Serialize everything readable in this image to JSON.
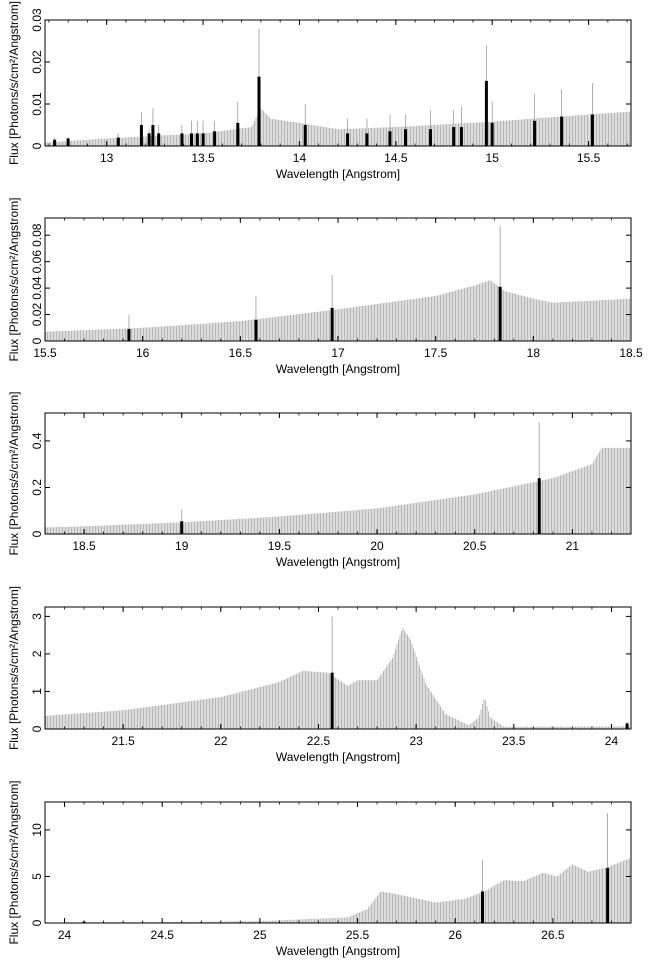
{
  "figure": {
    "background": "#ffffff",
    "data_color": "#000000",
    "model_color": "#9a9a9a"
  },
  "chart_data": [
    {
      "type": "bar",
      "xlabel": "Wavelength [Angstrom]",
      "ylabel": "Flux [Photons/s/cm²/Angstrom]",
      "xlim": [
        12.68,
        15.72
      ],
      "ylim": [
        0,
        0.03
      ],
      "xticks": [
        13,
        13.5,
        14,
        14.5,
        15,
        15.5
      ],
      "xtick_labels": [
        "13",
        "13.5",
        "14",
        "14.5",
        "15",
        "15.5"
      ],
      "yticks": [
        0,
        0.01,
        0.02,
        0.03
      ],
      "ytick_labels": [
        "0",
        "0.01",
        "0.02",
        "0.03"
      ],
      "model_bins": 1.5,
      "continuum": [
        [
          12.68,
          0.0008
        ],
        [
          13.0,
          0.0018
        ],
        [
          13.5,
          0.003
        ],
        [
          13.75,
          0.0045
        ],
        [
          13.8,
          0.009
        ],
        [
          13.85,
          0.0065
        ],
        [
          14.0,
          0.0055
        ],
        [
          14.2,
          0.004
        ],
        [
          14.5,
          0.0045
        ],
        [
          15.0,
          0.0058
        ],
        [
          15.5,
          0.0075
        ],
        [
          15.72,
          0.0082
        ]
      ],
      "data_points": [
        {
          "x": 12.73,
          "y": 0.0015,
          "err": 0.002
        },
        {
          "x": 12.8,
          "y": 0.0018,
          "err": 0.002
        },
        {
          "x": 13.06,
          "y": 0.002,
          "err": 0.003
        },
        {
          "x": 13.18,
          "y": 0.005,
          "err": 0.008
        },
        {
          "x": 13.22,
          "y": 0.003,
          "err": 0.004
        },
        {
          "x": 13.24,
          "y": 0.005,
          "err": 0.009
        },
        {
          "x": 13.27,
          "y": 0.003,
          "err": 0.005
        },
        {
          "x": 13.39,
          "y": 0.003,
          "err": 0.005
        },
        {
          "x": 13.44,
          "y": 0.003,
          "err": 0.006
        },
        {
          "x": 13.47,
          "y": 0.003,
          "err": 0.006
        },
        {
          "x": 13.5,
          "y": 0.003,
          "err": 0.006
        },
        {
          "x": 13.56,
          "y": 0.0035,
          "err": 0.006
        },
        {
          "x": 13.68,
          "y": 0.0055,
          "err": 0.0105
        },
        {
          "x": 13.79,
          "y": 0.0165,
          "err": 0.028
        },
        {
          "x": 14.03,
          "y": 0.005,
          "err": 0.01
        },
        {
          "x": 14.25,
          "y": 0.003,
          "err": 0.0065
        },
        {
          "x": 14.35,
          "y": 0.003,
          "err": 0.0065
        },
        {
          "x": 14.47,
          "y": 0.0035,
          "err": 0.0075
        },
        {
          "x": 14.55,
          "y": 0.004,
          "err": 0.0075
        },
        {
          "x": 14.68,
          "y": 0.004,
          "err": 0.0085
        },
        {
          "x": 14.8,
          "y": 0.0045,
          "err": 0.0085
        },
        {
          "x": 14.84,
          "y": 0.0045,
          "err": 0.0095
        },
        {
          "x": 14.97,
          "y": 0.0155,
          "err": 0.024
        },
        {
          "x": 15.0,
          "y": 0.0055,
          "err": 0.0105
        },
        {
          "x": 15.22,
          "y": 0.006,
          "err": 0.0125
        },
        {
          "x": 15.36,
          "y": 0.007,
          "err": 0.0135
        },
        {
          "x": 15.52,
          "y": 0.0075,
          "err": 0.015
        }
      ]
    },
    {
      "type": "bar",
      "xlabel": "Wavelength [Angstrom]",
      "ylabel": "Flux [Photons/s/cm²/Angstrom]",
      "xlim": [
        15.5,
        18.5
      ],
      "ylim": [
        0,
        0.093
      ],
      "xticks": [
        15.5,
        16,
        16.5,
        17,
        17.5,
        18,
        18.5
      ],
      "xtick_labels": [
        "15.5",
        "16",
        "16.5",
        "17",
        "17.5",
        "18",
        "18.5"
      ],
      "yticks": [
        0,
        0.02,
        0.04,
        0.06,
        0.08
      ],
      "ytick_labels": [
        "0",
        "0.02",
        "0.04",
        "0.06",
        "0.08"
      ],
      "model_bins": 1.5,
      "continuum": [
        [
          15.5,
          0.007
        ],
        [
          16.0,
          0.01
        ],
        [
          16.5,
          0.015
        ],
        [
          17.0,
          0.024
        ],
        [
          17.5,
          0.034
        ],
        [
          17.7,
          0.042
        ],
        [
          17.78,
          0.046
        ],
        [
          17.85,
          0.038
        ],
        [
          18.0,
          0.032
        ],
        [
          18.1,
          0.029
        ],
        [
          18.5,
          0.032
        ]
      ],
      "data_points": [
        {
          "x": 15.93,
          "y": 0.009,
          "err": 0.02
        },
        {
          "x": 16.58,
          "y": 0.016,
          "err": 0.034
        },
        {
          "x": 16.97,
          "y": 0.025,
          "err": 0.05
        },
        {
          "x": 17.83,
          "y": 0.041,
          "err": 0.087
        }
      ]
    },
    {
      "type": "bar",
      "xlabel": "Wavelength [Angstrom]",
      "ylabel": "Flux [Photons/s/cm²/Angstrom]",
      "xlim": [
        18.3,
        21.3
      ],
      "ylim": [
        0,
        0.52
      ],
      "xticks": [
        18.5,
        19,
        19.5,
        20,
        20.5,
        21
      ],
      "xtick_labels": [
        "18.5",
        "19",
        "19.5",
        "20",
        "20.5",
        "21"
      ],
      "yticks": [
        0,
        0.2,
        0.4
      ],
      "ytick_labels": [
        "0",
        "0.2",
        "0.4"
      ],
      "model_bins": 1.5,
      "continuum": [
        [
          18.3,
          0.028
        ],
        [
          18.5,
          0.033
        ],
        [
          19.0,
          0.05
        ],
        [
          19.5,
          0.075
        ],
        [
          20.0,
          0.11
        ],
        [
          20.5,
          0.17
        ],
        [
          20.9,
          0.24
        ],
        [
          21.1,
          0.3
        ],
        [
          21.15,
          0.37
        ],
        [
          21.3,
          0.37
        ]
      ],
      "data_points": [
        {
          "x": 19.0,
          "y": 0.055,
          "err": 0.105
        },
        {
          "x": 20.83,
          "y": 0.24,
          "err": 0.48
        }
      ]
    },
    {
      "type": "bar",
      "xlabel": "Wavelength [Angstrom]",
      "ylabel": "Flux [Photons/s/cm²/Angstrom]",
      "xlim": [
        21.1,
        24.1
      ],
      "ylim": [
        0,
        3.25
      ],
      "xticks": [
        21.5,
        22,
        22.5,
        23,
        23.5,
        24
      ],
      "xtick_labels": [
        "21.5",
        "22",
        "22.5",
        "23",
        "23.5",
        "24"
      ],
      "yticks": [
        0,
        1,
        2,
        3
      ],
      "ytick_labels": [
        "0",
        "1",
        "2",
        "3"
      ],
      "model_bins": 1.5,
      "continuum": [
        [
          21.1,
          0.35
        ],
        [
          21.5,
          0.5
        ],
        [
          22.0,
          0.85
        ],
        [
          22.3,
          1.25
        ],
        [
          22.42,
          1.55
        ],
        [
          22.55,
          1.5
        ],
        [
          22.65,
          1.15
        ],
        [
          22.7,
          1.3
        ],
        [
          22.8,
          1.3
        ],
        [
          22.88,
          1.9
        ],
        [
          22.93,
          2.7
        ],
        [
          22.97,
          2.4
        ],
        [
          23.05,
          1.2
        ],
        [
          23.15,
          0.4
        ],
        [
          23.27,
          0.1
        ],
        [
          23.32,
          0.3
        ],
        [
          23.35,
          0.85
        ],
        [
          23.38,
          0.3
        ],
        [
          23.45,
          0.06
        ],
        [
          24.1,
          0.07
        ]
      ],
      "data_points": [
        {
          "x": 22.57,
          "y": 1.5,
          "err": 3.0
        },
        {
          "x": 24.08,
          "y": 0.15,
          "err": 0.2
        }
      ]
    },
    {
      "type": "bar",
      "xlabel": "Wavelength [Angstrom]",
      "ylabel": "Flux [Photons/s/cm²/Angstrom]",
      "xlim": [
        23.9,
        26.9
      ],
      "ylim": [
        0,
        13
      ],
      "xticks": [
        24,
        24.5,
        25,
        25.5,
        26,
        26.5
      ],
      "xtick_labels": [
        "24",
        "24.5",
        "25",
        "25.5",
        "26",
        "26.5"
      ],
      "yticks": [
        0,
        5,
        10
      ],
      "ytick_labels": [
        "0",
        "5",
        "10"
      ],
      "model_bins": 1.5,
      "continuum": [
        [
          23.9,
          0.05
        ],
        [
          24.5,
          0.1
        ],
        [
          25.0,
          0.2
        ],
        [
          25.45,
          0.6
        ],
        [
          25.55,
          1.5
        ],
        [
          25.62,
          3.4
        ],
        [
          25.7,
          3.1
        ],
        [
          25.9,
          2.2
        ],
        [
          26.05,
          2.6
        ],
        [
          26.15,
          3.4
        ],
        [
          26.25,
          4.6
        ],
        [
          26.35,
          4.5
        ],
        [
          26.45,
          5.4
        ],
        [
          26.52,
          5.0
        ],
        [
          26.6,
          6.3
        ],
        [
          26.68,
          5.5
        ],
        [
          26.78,
          6.0
        ],
        [
          26.9,
          7.0
        ]
      ],
      "data_points": [
        {
          "x": 24.1,
          "y": 0.15,
          "err": 0.3
        },
        {
          "x": 26.14,
          "y": 3.4,
          "err": 6.8
        },
        {
          "x": 26.78,
          "y": 5.9,
          "err": 11.8
        }
      ]
    }
  ]
}
